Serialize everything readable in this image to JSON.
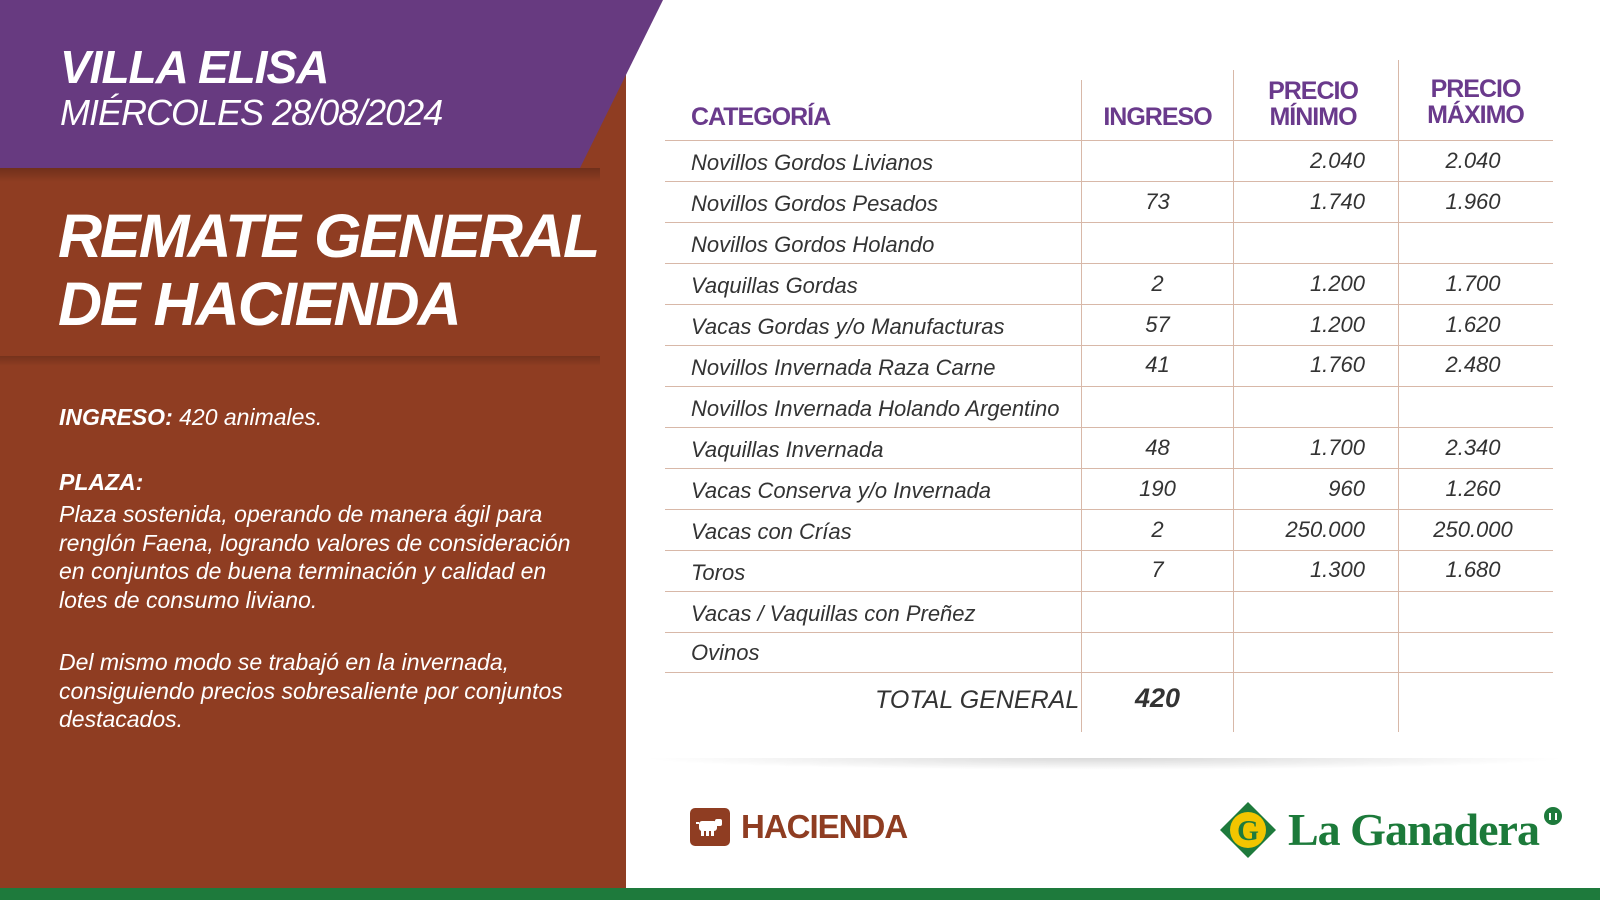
{
  "header": {
    "location": "VILLA ELISA",
    "date": "MIÉRCOLES 28/08/2024"
  },
  "headline": {
    "line1": "REMATE GENERAL",
    "line2": "DE HACIENDA"
  },
  "summary": {
    "ingreso_label": "INGRESO:",
    "ingreso_value": "420 animales.",
    "plaza_label": "PLAZA:",
    "plaza_paragraph1": "Plaza sostenida, operando de manera ágil para renglón Faena, logrando valores de consideración en conjuntos de buena terminación y calidad en lotes de consumo liviano.",
    "plaza_paragraph2": "Del mismo modo se trabajó en la invernada, consiguiendo precios sobresaliente por conjuntos destacados."
  },
  "table": {
    "headers": {
      "categoria": "CATEGORÍA",
      "ingreso": "INGRESO",
      "precio_min_1": "PRECIO",
      "precio_min_2": "MÍNIMO",
      "precio_max_1": "PRECIO",
      "precio_max_2": "MÁXIMO"
    },
    "rows": [
      {
        "categoria": "Novillos Gordos Livianos",
        "ingreso": "",
        "min": "2.040",
        "max": "2.040"
      },
      {
        "categoria": "Novillos Gordos Pesados",
        "ingreso": "73",
        "min": "1.740",
        "max": "1.960"
      },
      {
        "categoria": "Novillos Gordos Holando",
        "ingreso": "",
        "min": "",
        "max": ""
      },
      {
        "categoria": "Vaquillas Gordas",
        "ingreso": "2",
        "min": "1.200",
        "max": "1.700"
      },
      {
        "categoria": "Vacas Gordas y/o Manufacturas",
        "ingreso": "57",
        "min": "1.200",
        "max": "1.620"
      },
      {
        "categoria": "Novillos Invernada Raza Carne",
        "ingreso": "41",
        "min": "1.760",
        "max": "2.480"
      },
      {
        "categoria": "Novillos Invernada Holando Argentino",
        "ingreso": "",
        "min": "",
        "max": ""
      },
      {
        "categoria": "Vaquillas Invernada",
        "ingreso": "48",
        "min": "1.700",
        "max": "2.340"
      },
      {
        "categoria": "Vacas Conserva y/o Invernada",
        "ingreso": "190",
        "min": "960",
        "max": "1.260"
      },
      {
        "categoria": "Vacas con Crías",
        "ingreso": "2",
        "min": "250.000",
        "max": "250.000"
      },
      {
        "categoria": "Toros",
        "ingreso": "7",
        "min": "1.300",
        "max": "1.680"
      },
      {
        "categoria": "Vacas / Vaquillas con Preñez",
        "ingreso": "",
        "min": "",
        "max": ""
      },
      {
        "categoria": "Ovinos",
        "ingreso": "",
        "min": "",
        "max": ""
      }
    ],
    "total_label": "TOTAL GENERAL",
    "total_value": "420"
  },
  "footer": {
    "section_icon": "cow-icon",
    "section_label": "HACIENDA",
    "brand_name": "La Ganadera",
    "brand_mark": "G"
  },
  "colors": {
    "purple": "#673a80",
    "brown": "#8f3d22",
    "green": "#1e7a3c",
    "header_text": "#6a3a8c"
  }
}
